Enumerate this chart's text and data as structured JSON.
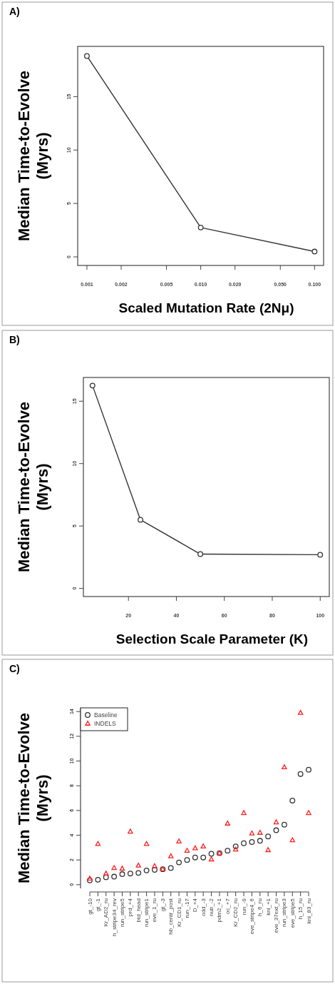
{
  "chart_data": [
    {
      "type": "line",
      "title": "A)",
      "ylabel": "Median Time-to-Evolve (Myrs)",
      "xlabel": "Scaled Mutation Rate (2Nμ)",
      "log": "x",
      "x": [
        0.001,
        0.01,
        0.1
      ],
      "values": [
        18.8,
        2.75,
        0.5
      ],
      "color": "#333333",
      "marker": "circle",
      "xlim": [
        0.00083,
        0.12
      ],
      "xticks": [
        {
          "value": 0.001,
          "label": "0.001"
        },
        {
          "value": 0.002,
          "label": "0.002"
        },
        {
          "value": 0.005,
          "label": "0.005"
        },
        {
          "value": 0.01,
          "label": "0.010"
        },
        {
          "value": 0.02,
          "label": "0.020"
        },
        {
          "value": 0.05,
          "label": "0.050"
        },
        {
          "value": 0.1,
          "label": "0.100"
        }
      ],
      "ylim": [
        -0.8,
        19.7
      ],
      "yticks": [
        0,
        5,
        10,
        15
      ]
    },
    {
      "type": "line",
      "title": "B)",
      "ylabel": "Median Time-to-Evolve (Myrs)",
      "xlabel": "Selection Scale Parameter (K)",
      "x": [
        5,
        25,
        50,
        100
      ],
      "values": [
        16.25,
        5.5,
        2.75,
        2.7
      ],
      "color": "#333333",
      "marker": "circle",
      "xlim": [
        1.2,
        103.8
      ],
      "xticks": [
        20,
        40,
        60,
        80,
        100
      ],
      "ylim": [
        -0.65,
        16.9
      ],
      "yticks": [
        0,
        5,
        10,
        15
      ]
    },
    {
      "type": "scatter",
      "title": "C)",
      "ylabel": "Median Time-to-Evolve (Myrs)",
      "legend": "top left",
      "categories": [
        "gt_-10",
        "gt_-1",
        "Kr_AD2_ru",
        "h_stripe34_rev",
        "run_stripe5",
        "prd_+4",
        "btd_head",
        "run_stripe1",
        "eve_1_ru",
        "gt_-3",
        "hb_centr_post",
        "Kr_CD1_ru",
        "run_-17",
        "D_+4",
        "odd_-3",
        "nub_-2",
        "pdm2_+1",
        "oc_+7",
        "Kr_CD2_ru",
        "run_-9",
        "eve_stripe4_6",
        "h_6_ru",
        "kni_+1",
        "eve_37ext_ru",
        "run_stripe3",
        "eve_stripe5",
        "h_15_ru",
        "kni_83_ru"
      ],
      "ylim": [
        -0.3,
        14.3
      ],
      "yticks": [
        0,
        2,
        4,
        6,
        8,
        10,
        12,
        14
      ],
      "series": [
        {
          "name": "Baseline",
          "color": "#333333",
          "marker": "circle",
          "values": [
            0.35,
            0.4,
            0.6,
            0.65,
            0.85,
            0.9,
            0.95,
            1.15,
            1.2,
            1.25,
            1.35,
            1.8,
            2.0,
            2.2,
            2.2,
            2.5,
            2.55,
            2.75,
            3.1,
            3.35,
            3.45,
            3.55,
            3.9,
            4.4,
            4.85,
            6.8,
            8.95,
            9.3
          ]
        },
        {
          "name": "INDELS",
          "color": "#ff2020",
          "marker": "triangle",
          "values": [
            0.5,
            3.3,
            0.9,
            1.35,
            1.3,
            4.3,
            1.55,
            3.3,
            1.5,
            1.25,
            2.3,
            3.5,
            2.75,
            2.95,
            3.1,
            2.05,
            2.55,
            4.95,
            2.85,
            5.8,
            4.15,
            4.2,
            2.8,
            5.05,
            9.5,
            3.6,
            13.9,
            5.8
          ]
        }
      ]
    }
  ]
}
